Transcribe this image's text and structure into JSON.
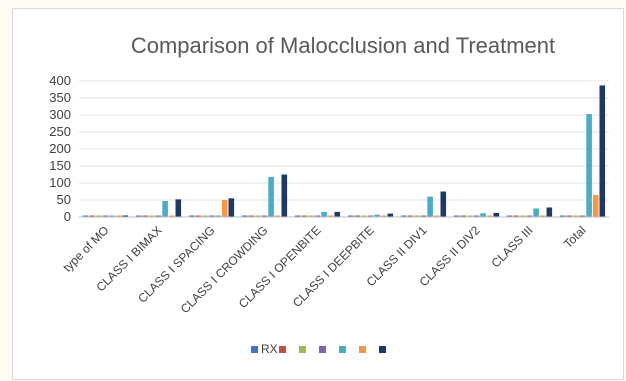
{
  "chart_data": {
    "type": "bar",
    "title": "Comparison of Malocclusion and Treatment",
    "xlabel": "",
    "ylabel": "",
    "ylim": [
      0,
      400
    ],
    "yticks": [
      0,
      50,
      100,
      150,
      200,
      250,
      300,
      350,
      400
    ],
    "grid": true,
    "legend_position": "bottom",
    "categories": [
      "type of MO",
      "CLASS I BIMAX",
      "CLASS I SPACING",
      "CLASS I CROWDING",
      "CLASS I OPENBITE",
      "CLASS I DEEPBITE",
      "CLASS II DIV1",
      "CLASS II DIV2",
      "CLASS III",
      "Total"
    ],
    "series": [
      {
        "name": "RX",
        "color": "#4472c4",
        "values": [
          0,
          0,
          0,
          0,
          0,
          0,
          2,
          0,
          0,
          3
        ]
      },
      {
        "name": "",
        "color": "#c0504d",
        "values": [
          0,
          0,
          0,
          0,
          0,
          0,
          2,
          0,
          0,
          3
        ]
      },
      {
        "name": "",
        "color": "#9bbb59",
        "values": [
          0,
          0,
          0,
          0,
          0,
          0,
          0,
          0,
          0,
          2
        ]
      },
      {
        "name": "",
        "color": "#8064a2",
        "values": [
          0,
          0,
          0,
          0,
          0,
          0,
          0,
          0,
          0,
          2
        ]
      },
      {
        "name": "",
        "color": "#4bacc6",
        "values": [
          0,
          47,
          2,
          118,
          15,
          7,
          60,
          11,
          25,
          303
        ]
      },
      {
        "name": "",
        "color": "#f79646",
        "values": [
          0,
          0,
          50,
          3,
          0,
          0,
          3,
          0,
          3,
          65
        ]
      },
      {
        "name": "",
        "color": "#1f3864",
        "values": [
          0,
          52,
          55,
          125,
          15,
          10,
          75,
          12,
          28,
          387
        ]
      }
    ]
  }
}
